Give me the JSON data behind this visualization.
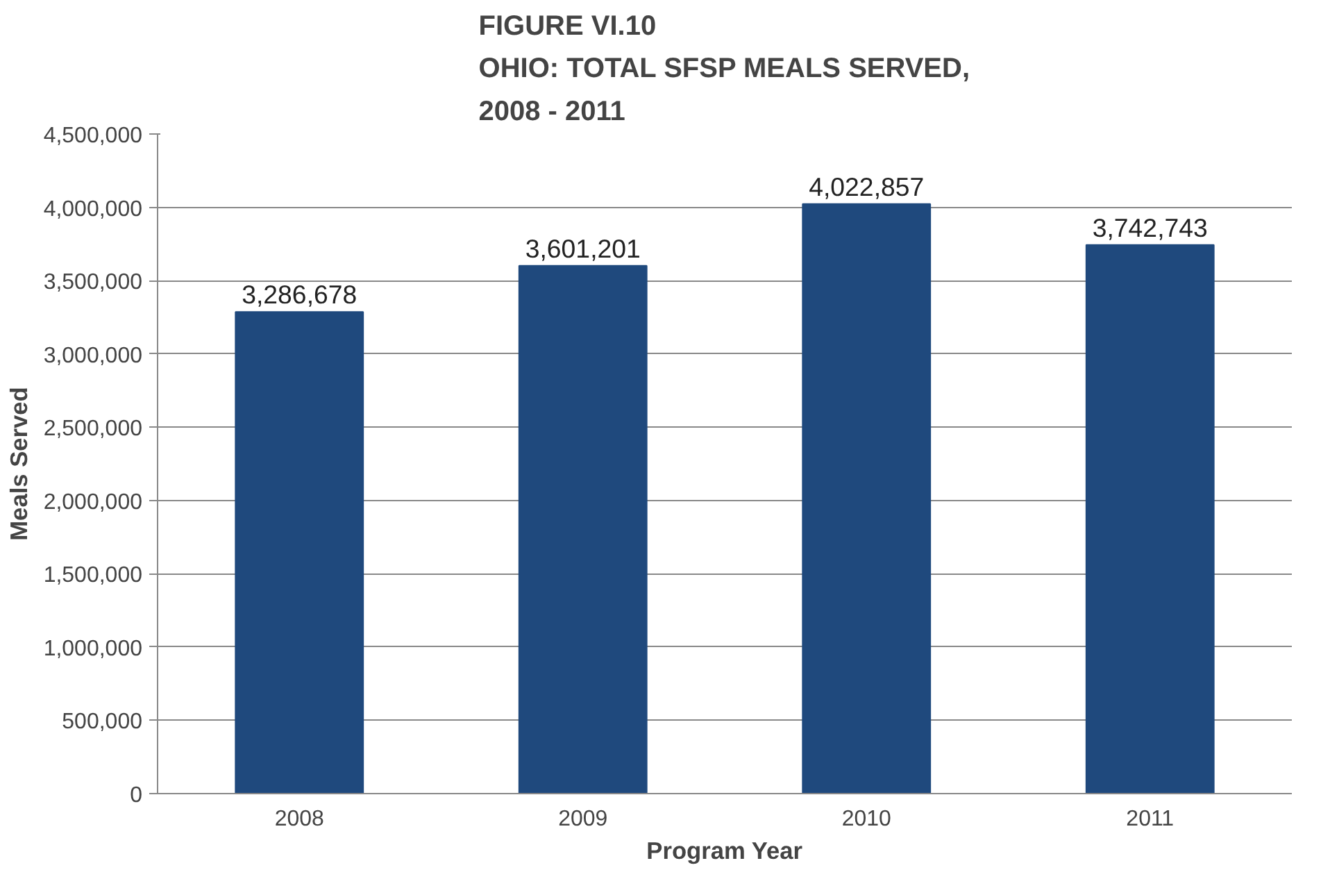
{
  "chart_data": {
    "type": "bar",
    "title": "FIGURE VI.10\nOHIO: TOTAL SFSP MEALS SERVED,\n2008 - 2011",
    "xlabel": "Program Year",
    "ylabel": "Meals Served",
    "categories": [
      "2008",
      "2009",
      "2010",
      "2011"
    ],
    "values": [
      3286678,
      3601201,
      4022857,
      3742743
    ],
    "value_labels": [
      "3,286,678",
      "3,601,201",
      "4,022,857",
      "3,742,743"
    ],
    "color": "#1f497d",
    "grid": "y",
    "ylim": [
      0,
      4500000
    ],
    "yticks": [
      {
        "value": 0,
        "label": "0"
      },
      {
        "value": 500000,
        "label": "500,000"
      },
      {
        "value": 1000000,
        "label": "1,000,000"
      },
      {
        "value": 1500000,
        "label": "1,500,000"
      },
      {
        "value": 2000000,
        "label": "2,000,000"
      },
      {
        "value": 2500000,
        "label": "2,500,000"
      },
      {
        "value": 3000000,
        "label": "3,000,000"
      },
      {
        "value": 3500000,
        "label": "3,500,000"
      },
      {
        "value": 4000000,
        "label": "4,000,000"
      },
      {
        "value": 4500000,
        "label": "4,500,000"
      }
    ]
  }
}
